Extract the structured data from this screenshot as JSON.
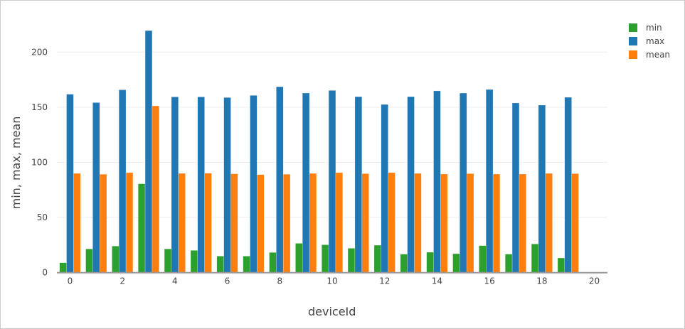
{
  "chart_data": {
    "type": "bar",
    "barmode": "group",
    "title": "",
    "xlabel": "deviceId",
    "ylabel": "min, max, mean",
    "x": [
      0,
      1,
      2,
      3,
      4,
      5,
      6,
      7,
      8,
      9,
      10,
      11,
      12,
      13,
      14,
      15,
      16,
      17,
      18,
      19
    ],
    "xlim": [
      -0.5,
      20.5
    ],
    "ylim": [
      0,
      227
    ],
    "xticks": [
      0,
      2,
      4,
      6,
      8,
      10,
      12,
      14,
      16,
      18,
      20
    ],
    "yticks": [
      0,
      50,
      100,
      150,
      200
    ],
    "grid": "horizontal",
    "legend_position": "top-right",
    "series": [
      {
        "name": "min",
        "color": "#2ca02c",
        "values": [
          9.0,
          21.5,
          24.1,
          80.6,
          21.5,
          20.2,
          15.0,
          15.0,
          18.3,
          26.6,
          25.3,
          22.1,
          24.9,
          16.8,
          18.5,
          17.2,
          24.5,
          16.8,
          26.0,
          13.3
        ]
      },
      {
        "name": "max",
        "color": "#1f77b4",
        "values": [
          161.8,
          154.2,
          165.8,
          219.5,
          159.4,
          159.4,
          158.8,
          160.7,
          168.6,
          162.8,
          165.2,
          159.6,
          152.5,
          159.6,
          164.8,
          162.8,
          166.1,
          153.8,
          151.9,
          159.0
        ]
      },
      {
        "name": "mean",
        "color": "#ff7f0e",
        "values": [
          90.0,
          89.2,
          90.7,
          151.2,
          90.0,
          90.2,
          89.6,
          88.9,
          89.2,
          90.0,
          90.7,
          89.8,
          90.7,
          90.0,
          89.4,
          89.8,
          89.4,
          89.4,
          90.0,
          89.8
        ]
      }
    ]
  }
}
